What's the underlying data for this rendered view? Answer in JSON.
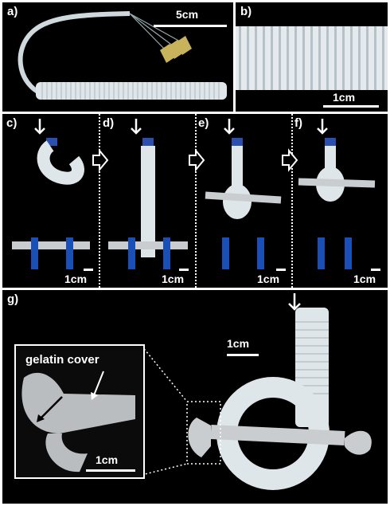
{
  "panels": {
    "a": {
      "label": "a)",
      "scale": "5cm"
    },
    "b": {
      "label": "b)",
      "scale": "1cm"
    },
    "c": {
      "label": "c)",
      "scale": "1cm"
    },
    "d": {
      "label": "d)",
      "scale": "1cm"
    },
    "e": {
      "label": "e)",
      "scale": "1cm"
    },
    "f": {
      "label": "f)",
      "scale": "1cm"
    },
    "g": {
      "label": "g)",
      "scale": "1cm"
    }
  },
  "inset": {
    "title": "gelatin cover",
    "scale": "1cm"
  },
  "colors": {
    "background": "#000000",
    "tube": "#dfe6ea",
    "wrench": "#c9cdd0",
    "post": "#1a4fb5",
    "needle_hub": "#b9a65a"
  }
}
